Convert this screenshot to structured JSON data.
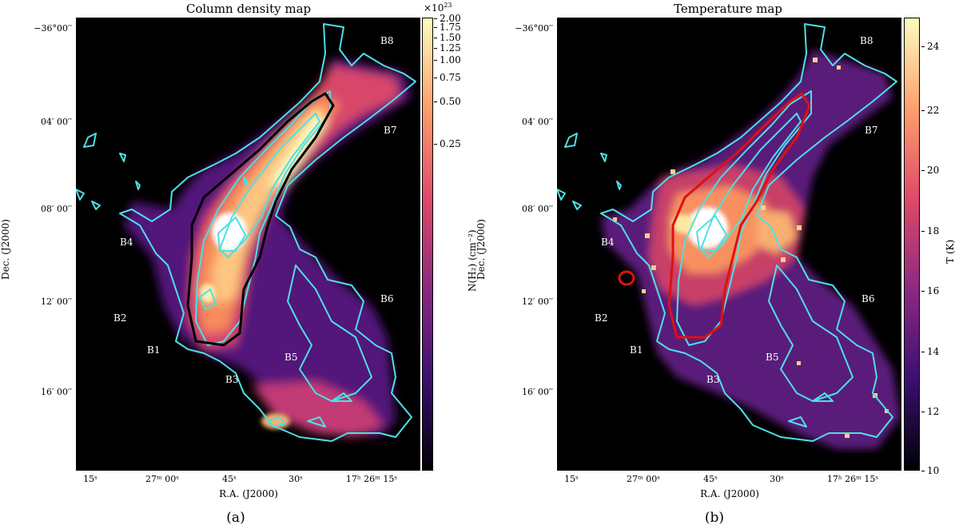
{
  "panels": [
    {
      "title": "Column density map",
      "sublabel": "(a)",
      "x_axis_title": "R.A. (J2000)",
      "y_axis_title": "Dec. (J2000)",
      "y_ticks": [
        "−36°00′′",
        "04′ 00′′",
        "08′ 00′′",
        "12′ 00′′",
        "16′ 00′′"
      ],
      "x_ticks": [
        "15ˢ",
        "27ᵐ 00ˢ",
        "45ˢ",
        "30ˢ",
        "17ʰ 26ᵐ 15ˢ"
      ],
      "regions": [
        "B8",
        "B7",
        "B4",
        "B2",
        "B1",
        "B6",
        "B5",
        "B3"
      ],
      "colorbar": {
        "title": "N(H₂)  (cm⁻²)",
        "multiplier": "×10",
        "multiplier_exp": "23",
        "ticks": [
          "2.00",
          "1.75",
          "1.50",
          "1.25",
          "1.00",
          "0.75",
          "0.50",
          "0.25"
        ],
        "colors": [
          "#000004",
          "#3b0f70",
          "#8c2981",
          "#de4968",
          "#fe9f6d",
          "#fcfdbf"
        ]
      }
    },
    {
      "title": "Temperature map",
      "sublabel": "(b)",
      "x_axis_title": "R.A. (J2000)",
      "y_axis_title": "Dec. (J2000)",
      "y_ticks": [
        "−36°00′′",
        "04′ 00′′",
        "08′ 00′′",
        "12′ 00′′",
        "16′ 00′′"
      ],
      "x_ticks": [
        "15ˢ",
        "27ᵐ 00ˢ",
        "45ˢ",
        "30ˢ",
        "17ʰ 26ᵐ 15ˢ"
      ],
      "regions": [
        "B8",
        "B7",
        "B4",
        "B2",
        "B1",
        "B6",
        "B5",
        "B3"
      ],
      "colorbar": {
        "title": "T (K)",
        "ticks": [
          "24",
          "22",
          "20",
          "18",
          "16",
          "14",
          "12",
          "10"
        ],
        "colors": [
          "#000004",
          "#3b0f70",
          "#8c2981",
          "#de4968",
          "#fe9f6d",
          "#fcfdbf"
        ]
      }
    }
  ],
  "colors": {
    "contour": "#4de0e6",
    "outline_a": "#000000",
    "outline_b": "#e01010"
  }
}
